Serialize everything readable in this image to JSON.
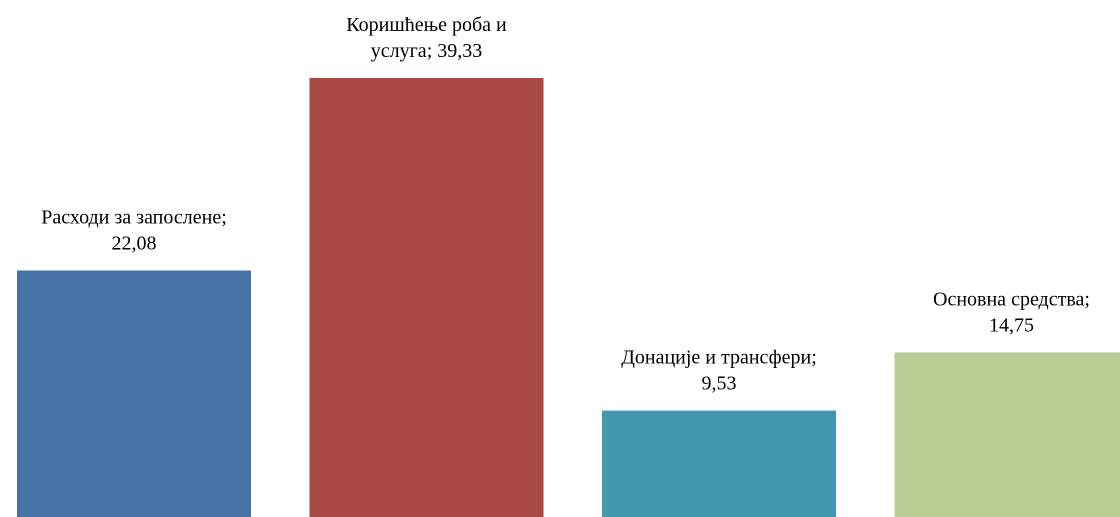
{
  "chart_data": {
    "type": "bar",
    "title": "",
    "xlabel": "",
    "ylabel": "",
    "ylim": [
      0,
      39.33
    ],
    "grid": false,
    "legend": "none",
    "categories": [
      "Расходи за запослене",
      "Коришћење роба и услуга",
      "Донације и трансфери",
      "Основна средства"
    ],
    "values": [
      22.08,
      39.33,
      9.53,
      14.75
    ],
    "value_labels": [
      "22,08",
      "39,33",
      "9,53",
      "14,75"
    ],
    "data_labels": [
      {
        "line1": "Расходи за запослене;",
        "line2": "22,08"
      },
      {
        "line1": "Коришћење роба и",
        "line2": "услуга;  39,33"
      },
      {
        "line1": "Донације и трансфери;",
        "line2": "9,53"
      },
      {
        "line1": "Основна средства;",
        "line2": "14,75"
      }
    ],
    "colors": [
      "#4672A8",
      "#A94845",
      "#4298AE",
      "#B9CF96"
    ]
  }
}
